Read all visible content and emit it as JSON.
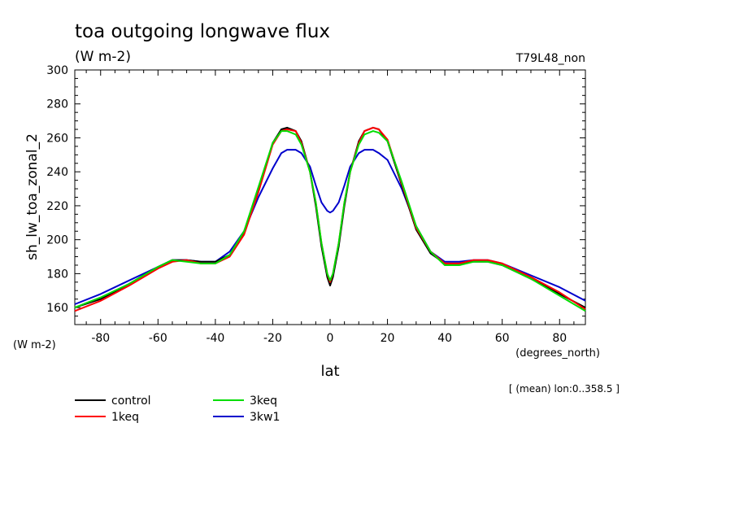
{
  "chart_data": {
    "type": "line",
    "title": "toa outgoing longwave flux",
    "subtitle": "(W m-2)",
    "run_label": "T79L48_non",
    "ylabel": "sh_lw_toa_zonal_2",
    "y_units": "(W m-2)",
    "xlabel": "lat",
    "x_units": "(degrees_north)",
    "footnote": "[ (mean) lon:0..358.5 ]",
    "xlim": [
      -89,
      89
    ],
    "ylim": [
      150,
      300
    ],
    "x_ticks": [
      -80,
      -60,
      -40,
      -20,
      0,
      20,
      40,
      60,
      80
    ],
    "y_ticks": [
      160,
      180,
      200,
      220,
      240,
      260,
      280,
      300
    ],
    "grid": false,
    "legend_position": "below-left",
    "x": [
      -89,
      -80,
      -70,
      -60,
      -55,
      -50,
      -45,
      -40,
      -35,
      -30,
      -25,
      -20,
      -17,
      -15,
      -12,
      -10,
      -7,
      -5,
      -3,
      -1,
      0,
      1,
      3,
      5,
      7,
      10,
      12,
      15,
      17,
      20,
      25,
      30,
      35,
      40,
      45,
      50,
      55,
      60,
      70,
      80,
      89
    ],
    "series": [
      {
        "name": "control",
        "color": "#000000",
        "values": [
          160,
          165,
          174,
          184,
          188,
          188,
          187,
          187,
          191,
          204,
          229,
          257,
          265,
          266,
          264,
          258,
          240,
          220,
          196,
          178,
          173,
          178,
          196,
          220,
          240,
          258,
          264,
          266,
          265,
          258,
          232,
          206,
          192,
          186,
          186,
          187,
          187,
          185,
          177,
          168,
          160
        ]
      },
      {
        "name": "1keq",
        "color": "#ff0000",
        "values": [
          158,
          164,
          173,
          183,
          187,
          188,
          186,
          186,
          190,
          203,
          228,
          256,
          264,
          265,
          264,
          257,
          240,
          222,
          198,
          180,
          175,
          180,
          198,
          222,
          240,
          257,
          264,
          266,
          265,
          259,
          233,
          207,
          193,
          186,
          186,
          188,
          188,
          186,
          178,
          169,
          159
        ]
      },
      {
        "name": "3keq",
        "color": "#00dd00",
        "values": [
          160,
          166,
          174,
          184,
          188,
          187,
          186,
          186,
          191,
          205,
          231,
          257,
          264,
          264,
          262,
          256,
          240,
          222,
          198,
          180,
          176,
          180,
          198,
          222,
          240,
          256,
          262,
          264,
          263,
          258,
          234,
          208,
          193,
          185,
          185,
          187,
          187,
          185,
          177,
          167,
          158
        ]
      },
      {
        "name": "3kw1",
        "color": "#0000cc",
        "values": [
          162,
          168,
          176,
          184,
          188,
          188,
          187,
          187,
          193,
          205,
          225,
          242,
          251,
          253,
          253,
          251,
          243,
          232,
          222,
          217,
          216,
          217,
          222,
          232,
          243,
          251,
          253,
          253,
          251,
          247,
          230,
          208,
          193,
          187,
          187,
          188,
          188,
          186,
          179,
          172,
          164
        ]
      }
    ]
  }
}
